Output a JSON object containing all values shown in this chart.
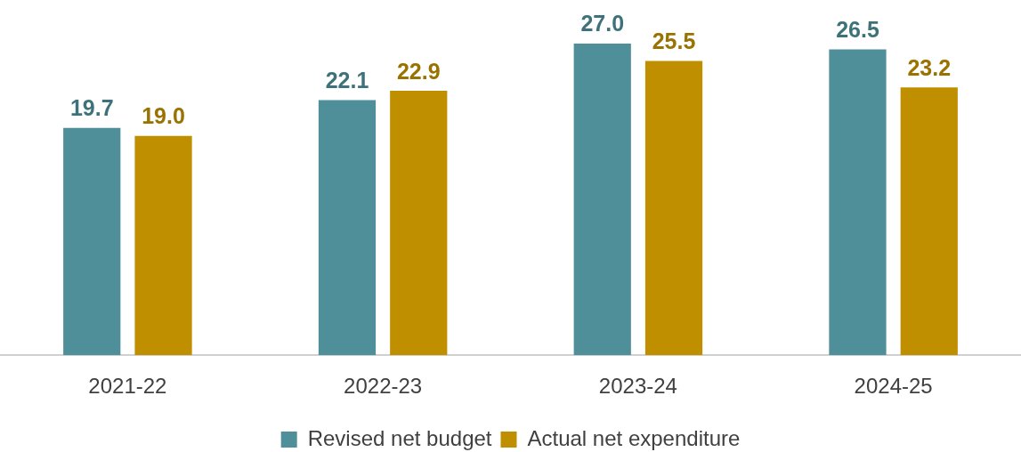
{
  "chart_data": {
    "type": "bar",
    "categories": [
      "2021-22",
      "2022-23",
      "2023-24",
      "2024-25"
    ],
    "series": [
      {
        "name": "Revised net budget",
        "color": "#4e8f99",
        "values": [
          19.7,
          22.1,
          27.0,
          26.5
        ],
        "value_labels": [
          "19.7",
          "22.1",
          "27.0",
          "26.5"
        ]
      },
      {
        "name": "Actual net expenditure",
        "color": "#bf8f00",
        "values": [
          19.0,
          22.9,
          25.5,
          23.2
        ],
        "value_labels": [
          "19.0",
          "22.9",
          "25.5",
          "23.2"
        ]
      }
    ],
    "grid": false,
    "legend": "bottom"
  }
}
